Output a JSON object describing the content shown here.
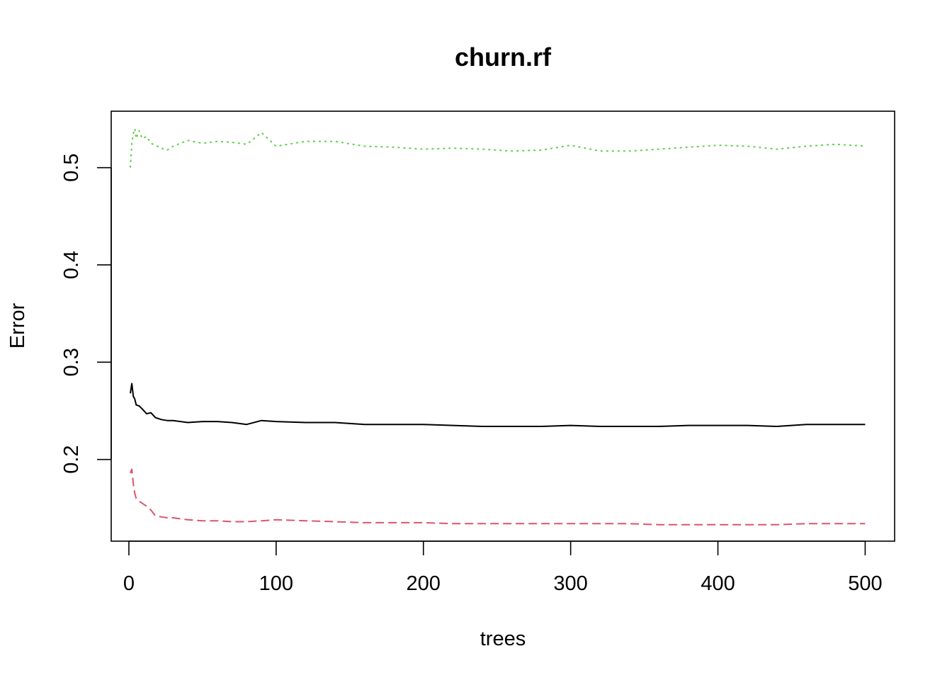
{
  "chart_data": {
    "type": "line",
    "title": "churn.rf",
    "xlabel": "trees",
    "ylabel": "Error",
    "xlim": [
      -12,
      520
    ],
    "ylim": [
      0.116,
      0.558
    ],
    "xticks": [
      0,
      100,
      200,
      300,
      400,
      500
    ],
    "yticks": [
      0.2,
      0.3,
      0.4,
      0.5
    ],
    "ytick_labels": [
      "0.2",
      "0.3",
      "0.4",
      "0.5"
    ],
    "grid": false,
    "legend": "none",
    "series": [
      {
        "color": "#000000",
        "dash": "solid",
        "x": [
          1,
          2,
          3,
          4,
          5,
          7,
          9,
          12,
          15,
          18,
          22,
          26,
          30,
          40,
          50,
          60,
          70,
          80,
          90,
          100,
          120,
          140,
          160,
          180,
          200,
          220,
          240,
          260,
          280,
          300,
          320,
          340,
          360,
          380,
          400,
          420,
          440,
          460,
          480,
          500
        ],
        "values": [
          0.268,
          0.278,
          0.265,
          0.262,
          0.256,
          0.255,
          0.252,
          0.247,
          0.248,
          0.243,
          0.241,
          0.24,
          0.24,
          0.238,
          0.239,
          0.239,
          0.238,
          0.236,
          0.24,
          0.239,
          0.238,
          0.238,
          0.236,
          0.236,
          0.236,
          0.235,
          0.234,
          0.234,
          0.234,
          0.235,
          0.234,
          0.234,
          0.234,
          0.235,
          0.235,
          0.235,
          0.234,
          0.236,
          0.236,
          0.236
        ]
      },
      {
        "color": "#DF536B",
        "dash": "dashed",
        "x": [
          1,
          2,
          3,
          4,
          5,
          7,
          9,
          12,
          15,
          18,
          22,
          26,
          30,
          40,
          50,
          60,
          70,
          80,
          90,
          100,
          120,
          140,
          160,
          180,
          200,
          220,
          240,
          260,
          280,
          300,
          320,
          340,
          360,
          380,
          400,
          420,
          440,
          460,
          480,
          500
        ],
        "values": [
          0.186,
          0.19,
          0.175,
          0.165,
          0.16,
          0.157,
          0.155,
          0.152,
          0.148,
          0.142,
          0.141,
          0.14,
          0.14,
          0.138,
          0.137,
          0.137,
          0.136,
          0.136,
          0.137,
          0.138,
          0.137,
          0.136,
          0.135,
          0.135,
          0.135,
          0.134,
          0.134,
          0.134,
          0.134,
          0.134,
          0.134,
          0.134,
          0.133,
          0.133,
          0.133,
          0.133,
          0.133,
          0.134,
          0.134,
          0.134
        ]
      },
      {
        "color": "#61D04F",
        "dash": "dotted",
        "x": [
          1,
          2,
          3,
          4,
          5,
          7,
          9,
          12,
          15,
          18,
          22,
          26,
          30,
          40,
          50,
          60,
          70,
          80,
          90,
          100,
          120,
          140,
          160,
          180,
          200,
          220,
          240,
          260,
          280,
          300,
          320,
          340,
          360,
          380,
          400,
          420,
          440,
          460,
          480,
          500
        ],
        "values": [
          0.5,
          0.525,
          0.535,
          0.54,
          0.53,
          0.538,
          0.53,
          0.532,
          0.525,
          0.523,
          0.52,
          0.518,
          0.522,
          0.528,
          0.525,
          0.527,
          0.526,
          0.524,
          0.536,
          0.522,
          0.527,
          0.527,
          0.522,
          0.521,
          0.519,
          0.52,
          0.519,
          0.517,
          0.518,
          0.523,
          0.517,
          0.517,
          0.519,
          0.521,
          0.523,
          0.522,
          0.519,
          0.522,
          0.524,
          0.522
        ]
      }
    ]
  }
}
